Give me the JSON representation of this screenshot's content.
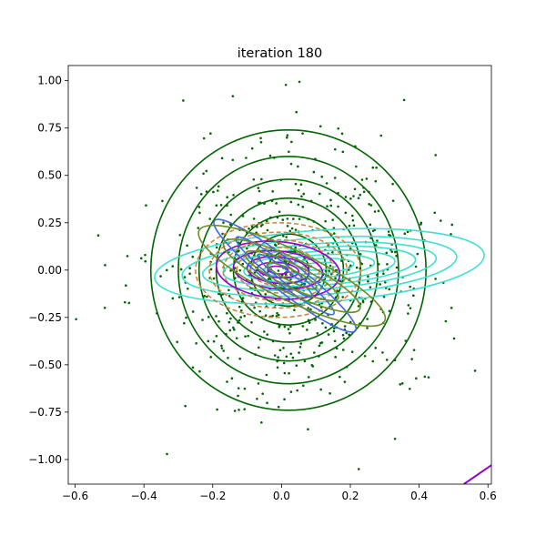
{
  "chart_data": {
    "type": "scatter",
    "title": "iteration 180",
    "xlabel": "",
    "ylabel": "",
    "xlim": [
      -0.62,
      0.61
    ],
    "ylim": [
      -1.13,
      1.08
    ],
    "grid": false,
    "legend": "none",
    "x_ticks": [
      -0.6,
      -0.4,
      -0.2,
      0.0,
      0.2,
      0.4,
      0.6
    ],
    "x_tick_labels": [
      "−0.6",
      "−0.4",
      "−0.2",
      "0.0",
      "0.2",
      "0.4",
      "0.6"
    ],
    "y_ticks": [
      -1.0,
      -0.75,
      -0.5,
      -0.25,
      0.0,
      0.25,
      0.5,
      0.75,
      1.0
    ],
    "y_tick_labels": [
      "−1.00",
      "−0.75",
      "−0.50",
      "−0.25",
      "0.00",
      "0.25",
      "0.50",
      "0.75",
      "1.00"
    ],
    "points": {
      "color": "#006400",
      "count": 600,
      "center": [
        0.03,
        -0.02
      ],
      "std": [
        0.2,
        0.36
      ]
    },
    "series": [
      {
        "color": "#006400",
        "dashed": false,
        "center": [
          0.02,
          0.0
        ],
        "angle_deg": 0,
        "rx": [
          0.06,
          0.11,
          0.16,
          0.21,
          0.26,
          0.32,
          0.4
        ],
        "ry": [
          0.1,
          0.19,
          0.29,
          0.38,
          0.48,
          0.6,
          0.74
        ]
      },
      {
        "color": "#40E0D0",
        "dashed": false,
        "center": [
          0.11,
          0.02
        ],
        "angle_deg": 4,
        "rx": [
          0.05,
          0.1,
          0.16,
          0.22,
          0.28,
          0.34,
          0.4,
          0.48
        ],
        "ry": [
          0.02,
          0.04,
          0.06,
          0.08,
          0.1,
          0.12,
          0.15,
          0.19
        ]
      },
      {
        "color": "#CD853F",
        "dashed": true,
        "center": [
          -0.01,
          0.0
        ],
        "angle_deg": 0,
        "rx": [
          0.04,
          0.08,
          0.12,
          0.16,
          0.2,
          0.24
        ],
        "ry": [
          0.04,
          0.08,
          0.12,
          0.16,
          0.2,
          0.25
        ]
      },
      {
        "color": "#9400D3",
        "dashed": false,
        "center": [
          -0.01,
          0.0
        ],
        "angle_deg": -5,
        "rx": [
          0.03,
          0.06,
          0.09,
          0.13,
          0.18
        ],
        "ry": [
          0.02,
          0.04,
          0.07,
          0.1,
          0.15
        ]
      },
      {
        "color": "#4169E1",
        "dashed": false,
        "center": [
          0.01,
          -0.03
        ],
        "angle_deg": -38,
        "rx": [
          0.1,
          0.18,
          0.26
        ],
        "ry": [
          0.03,
          0.05,
          0.08
        ]
      },
      {
        "color": "#6B8E23",
        "dashed": false,
        "center": [
          0.03,
          -0.03
        ],
        "angle_deg": -26,
        "rx": [
          0.08,
          0.15,
          0.22,
          0.3
        ],
        "ry": [
          0.03,
          0.06,
          0.09,
          0.13
        ]
      }
    ],
    "corner_line": {
      "color": "#9400D3",
      "x": [
        0.53,
        0.61
      ],
      "y": [
        -1.13,
        -1.03
      ]
    }
  }
}
